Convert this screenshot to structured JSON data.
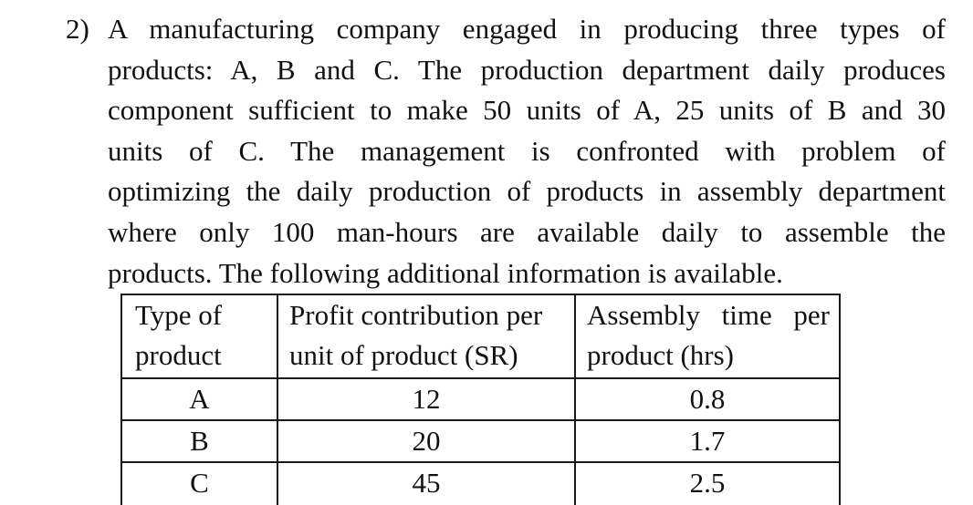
{
  "question": {
    "number": "2)",
    "lines": [
      "A manufacturing company engaged in producing three types of",
      "products: A, B and C.  The production department daily produces",
      "component sufficient to make 50 units of A, 25 units of B and 30",
      "units of C.   The management is confronted with problem of",
      "optimizing the daily production of products in assembly department",
      "where only 100 man-hours are available daily to assemble the",
      "products.  The following additional information is available."
    ]
  },
  "table": {
    "headers": [
      [
        "Type of",
        "product"
      ],
      [
        "Profit contribution per",
        "unit of product (SR)"
      ],
      [
        "Assembly time per",
        "product (hrs)"
      ]
    ],
    "rows": [
      [
        "A",
        "12",
        "0.8"
      ],
      [
        "B",
        "20",
        "1.7"
      ],
      [
        "C",
        "45",
        "2.5"
      ]
    ]
  }
}
